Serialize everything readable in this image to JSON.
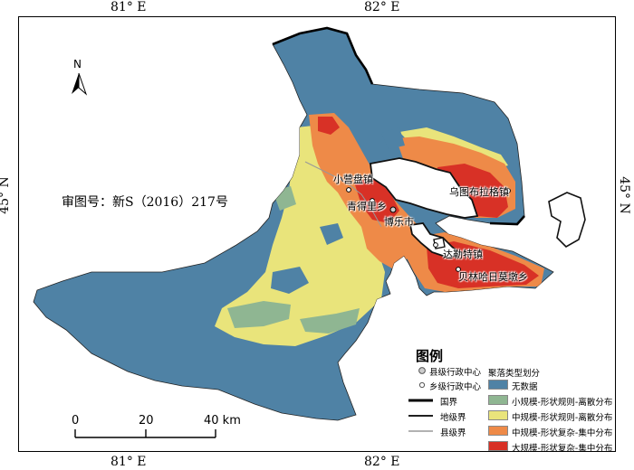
{
  "map": {
    "longitude_labels": {
      "left": "81° E",
      "right": "82° E"
    },
    "latitude_labels": {
      "left": "45° N",
      "right": "45° N"
    },
    "north_arrow": "N",
    "approval_number": "审图号：新S（2016）217号"
  },
  "places": {
    "xiaoyingpan": "小营盘镇",
    "qingdeli": "青得里乡",
    "bole": "博乐市",
    "wutubulage": "乌图布拉格镇",
    "dalete": "达勒特镇",
    "beilinhariemodun": "贝林哈日莫墩乡"
  },
  "legend": {
    "title": "图例",
    "county_center": "县级行政中心",
    "township_center": "乡级行政中心",
    "national_border": "国界",
    "prefecture_border": "地级界",
    "county_border": "县级界",
    "category_title": "聚落类型划分",
    "categories": [
      {
        "label": "无数据",
        "color": "#4f82a5"
      },
      {
        "label": "小规模-形状规则-离散分布",
        "color": "#8fb692"
      },
      {
        "label": "中规模-形状规则-离散分布",
        "color": "#e9e47b"
      },
      {
        "label": "中规模-形状复杂-集中分布",
        "color": "#ee8a48"
      },
      {
        "label": "大规模-形状复杂-集中分布",
        "color": "#d83126"
      }
    ]
  },
  "scale_bar": {
    "labels": [
      "0",
      "20",
      "40 km"
    ]
  }
}
